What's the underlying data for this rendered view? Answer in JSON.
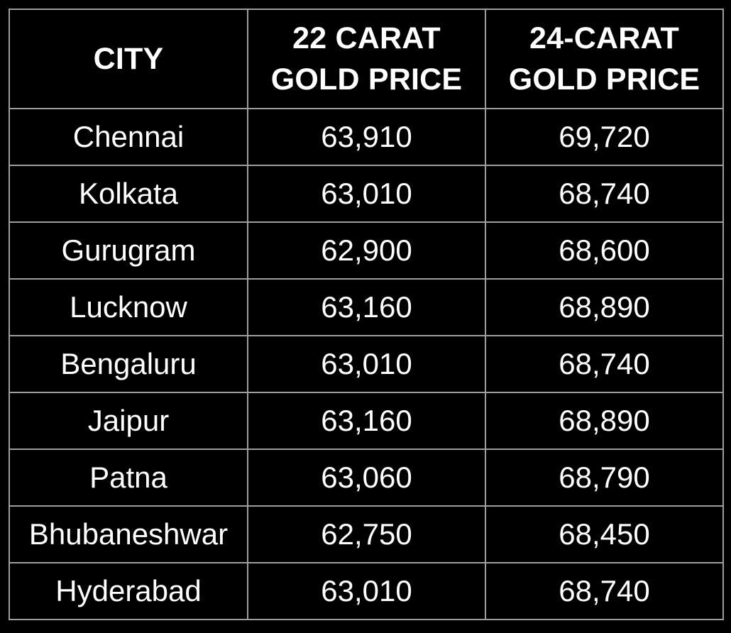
{
  "table": {
    "headers": {
      "city": "CITY",
      "carat22": [
        "22 CARAT",
        "GOLD PRICE"
      ],
      "carat24": [
        "24-CARAT",
        "GOLD PRICE"
      ]
    },
    "rows": [
      {
        "city": "Chennai",
        "carat22": "63,910",
        "carat24": "69,720"
      },
      {
        "city": "Kolkata",
        "carat22": "63,010",
        "carat24": "68,740"
      },
      {
        "city": "Gurugram",
        "carat22": "62,900",
        "carat24": "68,600"
      },
      {
        "city": "Lucknow",
        "carat22": "63,160",
        "carat24": "68,890"
      },
      {
        "city": "Bengaluru",
        "carat22": "63,010",
        "carat24": "68,740"
      },
      {
        "city": "Jaipur",
        "carat22": "63,160",
        "carat24": "68,890"
      },
      {
        "city": "Patna",
        "carat22": "63,060",
        "carat24": "68,790"
      },
      {
        "city": "Bhubaneshwar",
        "carat22": "62,750",
        "carat24": "68,450"
      },
      {
        "city": "Hyderabad",
        "carat22": "63,010",
        "carat24": "68,740"
      }
    ]
  },
  "colors": {
    "background": "#000000",
    "text": "#ffffff",
    "grid": "#9e9e9e"
  }
}
